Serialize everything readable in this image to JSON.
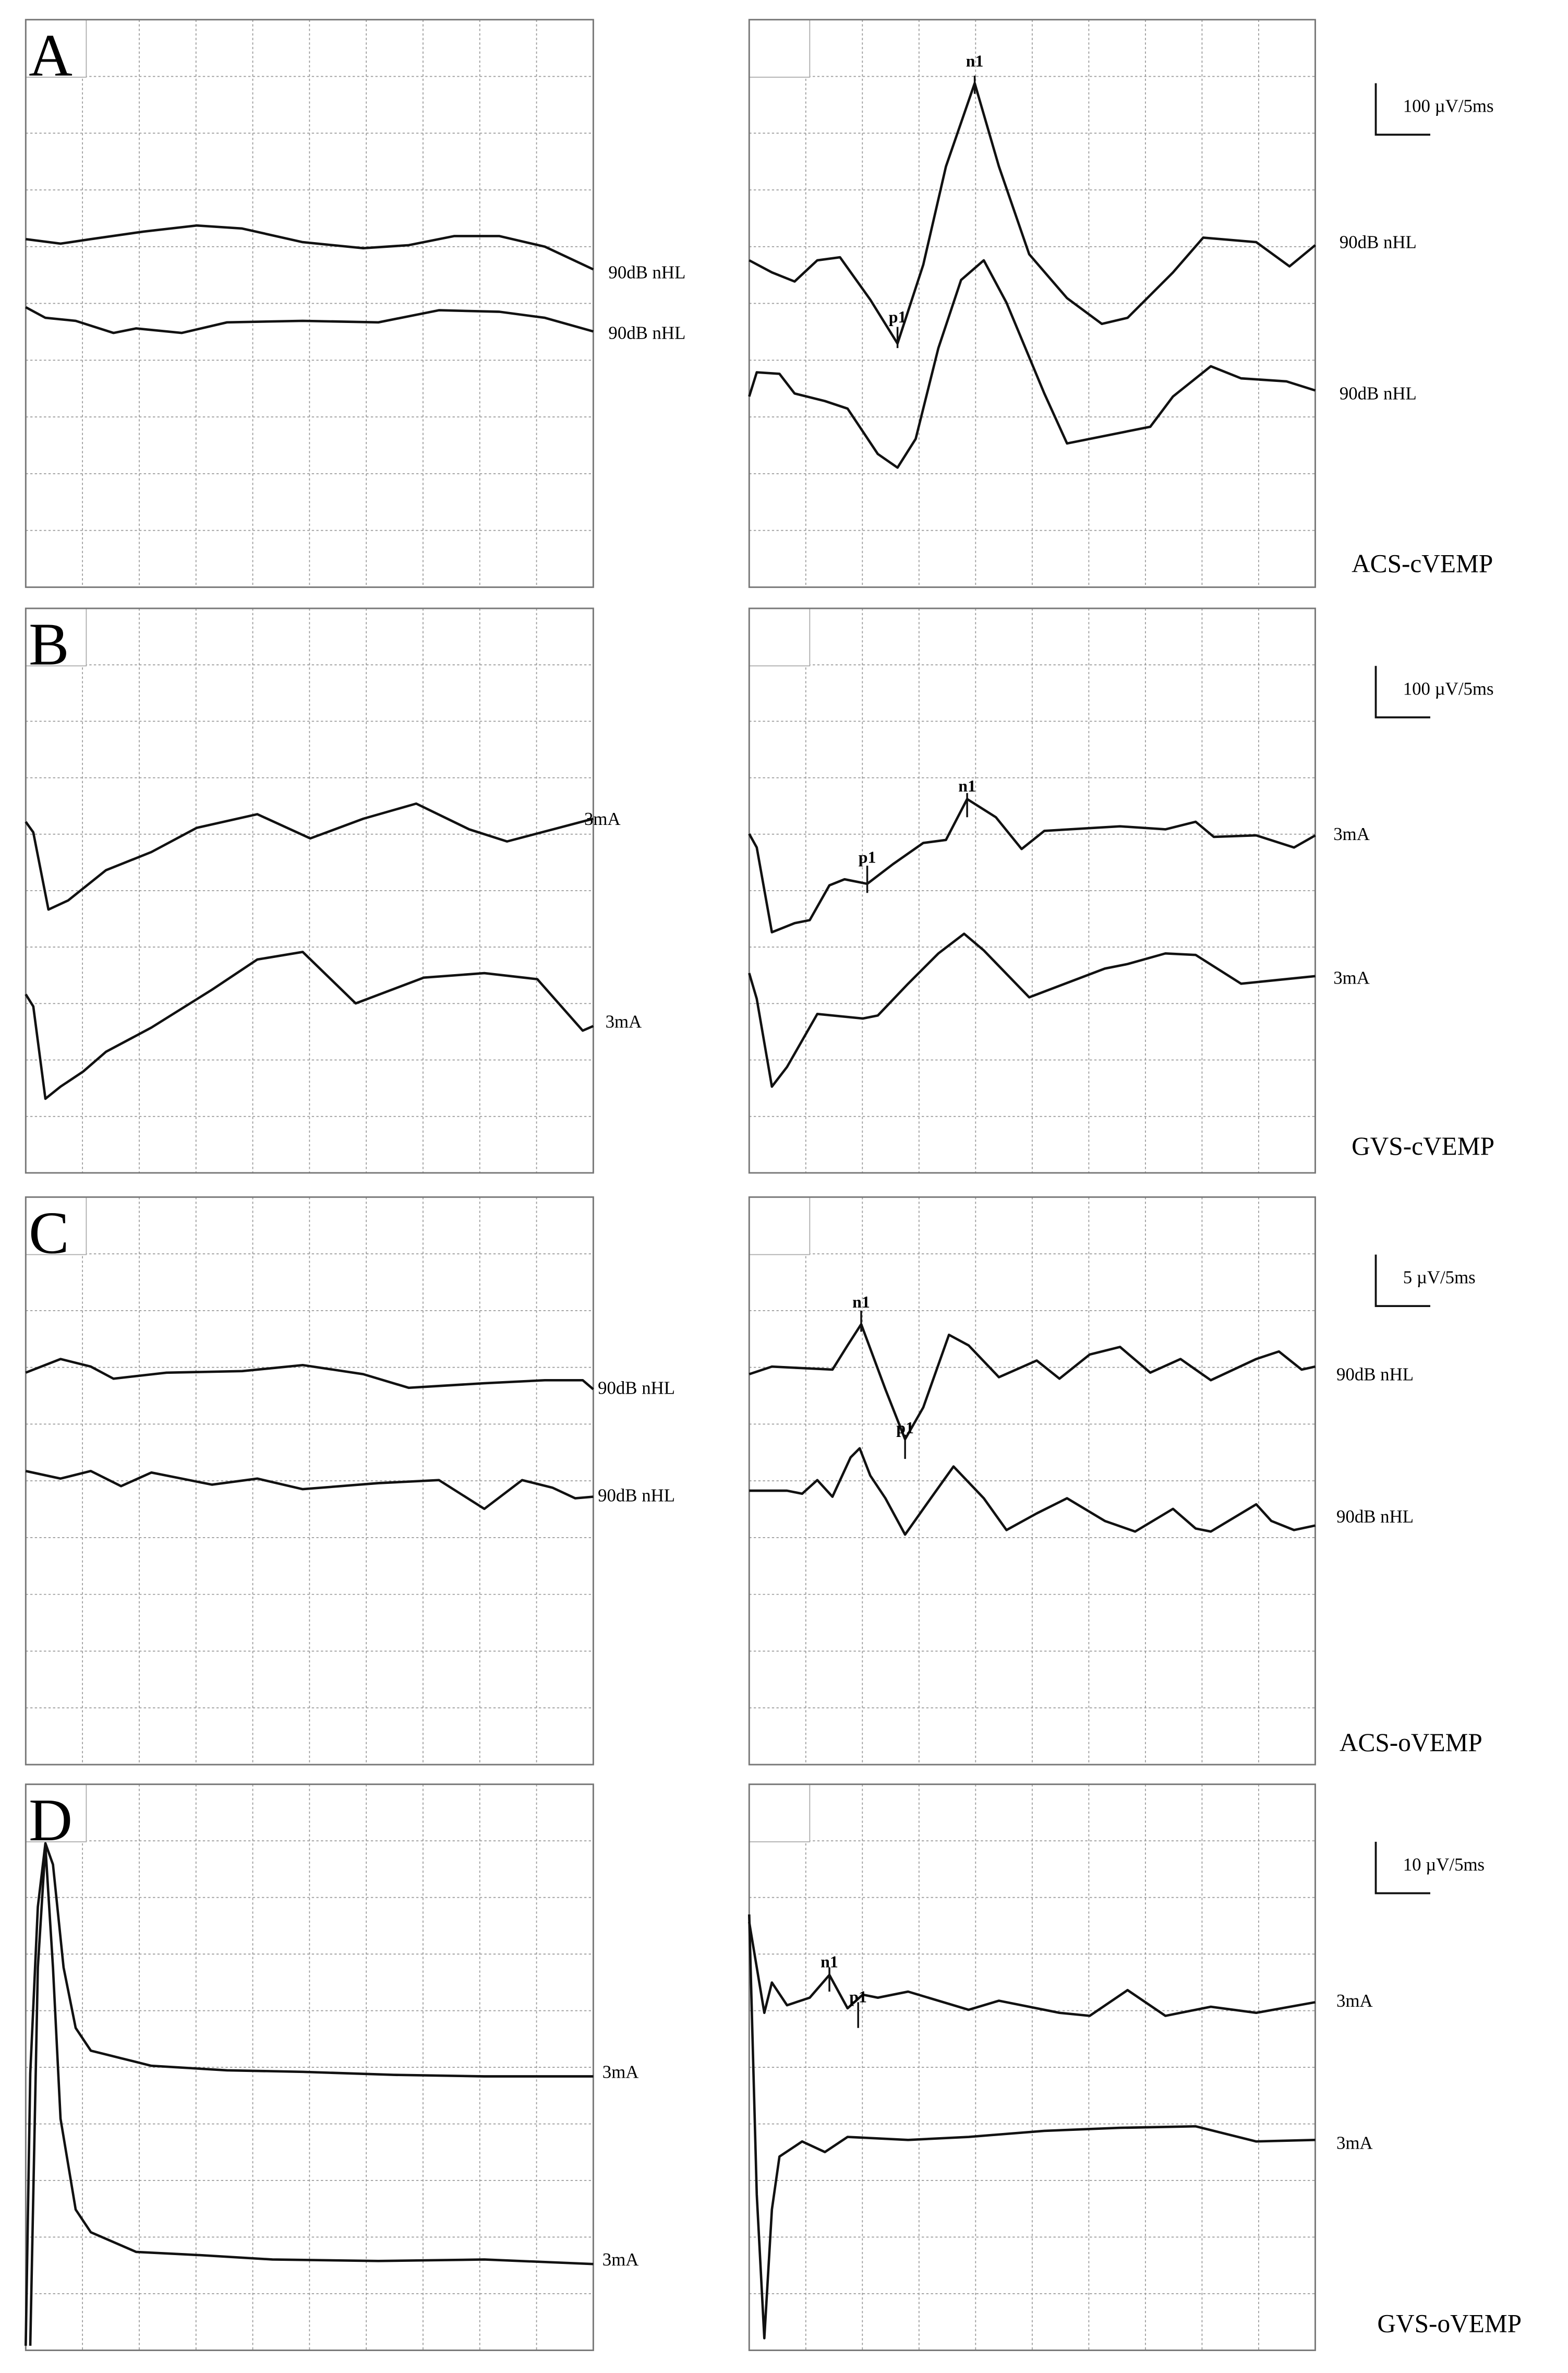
{
  "panels": [
    {
      "label": "A",
      "title": "ACS-cVEMP",
      "scale": "100 µV/5ms",
      "left_traces": [
        "90dB nHL",
        "90dB nHL"
      ],
      "right_traces": [
        "90dB nHL",
        "90dB nHL"
      ],
      "peaks": [
        "n1",
        "p1"
      ]
    },
    {
      "label": "B",
      "title": "GVS-cVEMP",
      "scale": "100 µV/5ms",
      "left_traces": [
        "3mA",
        "3mA"
      ],
      "right_traces": [
        "3mA",
        "3mA"
      ],
      "peaks": [
        "n1",
        "p1"
      ]
    },
    {
      "label": "C",
      "title": "ACS-oVEMP",
      "scale": "5 µV/5ms",
      "left_traces": [
        "90dB nHL",
        "90dB nHL"
      ],
      "right_traces": [
        "90dB nHL",
        "90dB nHL"
      ],
      "peaks": [
        "n1",
        "p1"
      ]
    },
    {
      "label": "D",
      "title": "GVS-oVEMP",
      "scale": "10 µV/5ms",
      "left_traces": [
        "3mA",
        "3mA"
      ],
      "right_traces": [
        "3mA",
        "3mA"
      ],
      "peaks": [
        "n1",
        "p1"
      ]
    }
  ]
}
